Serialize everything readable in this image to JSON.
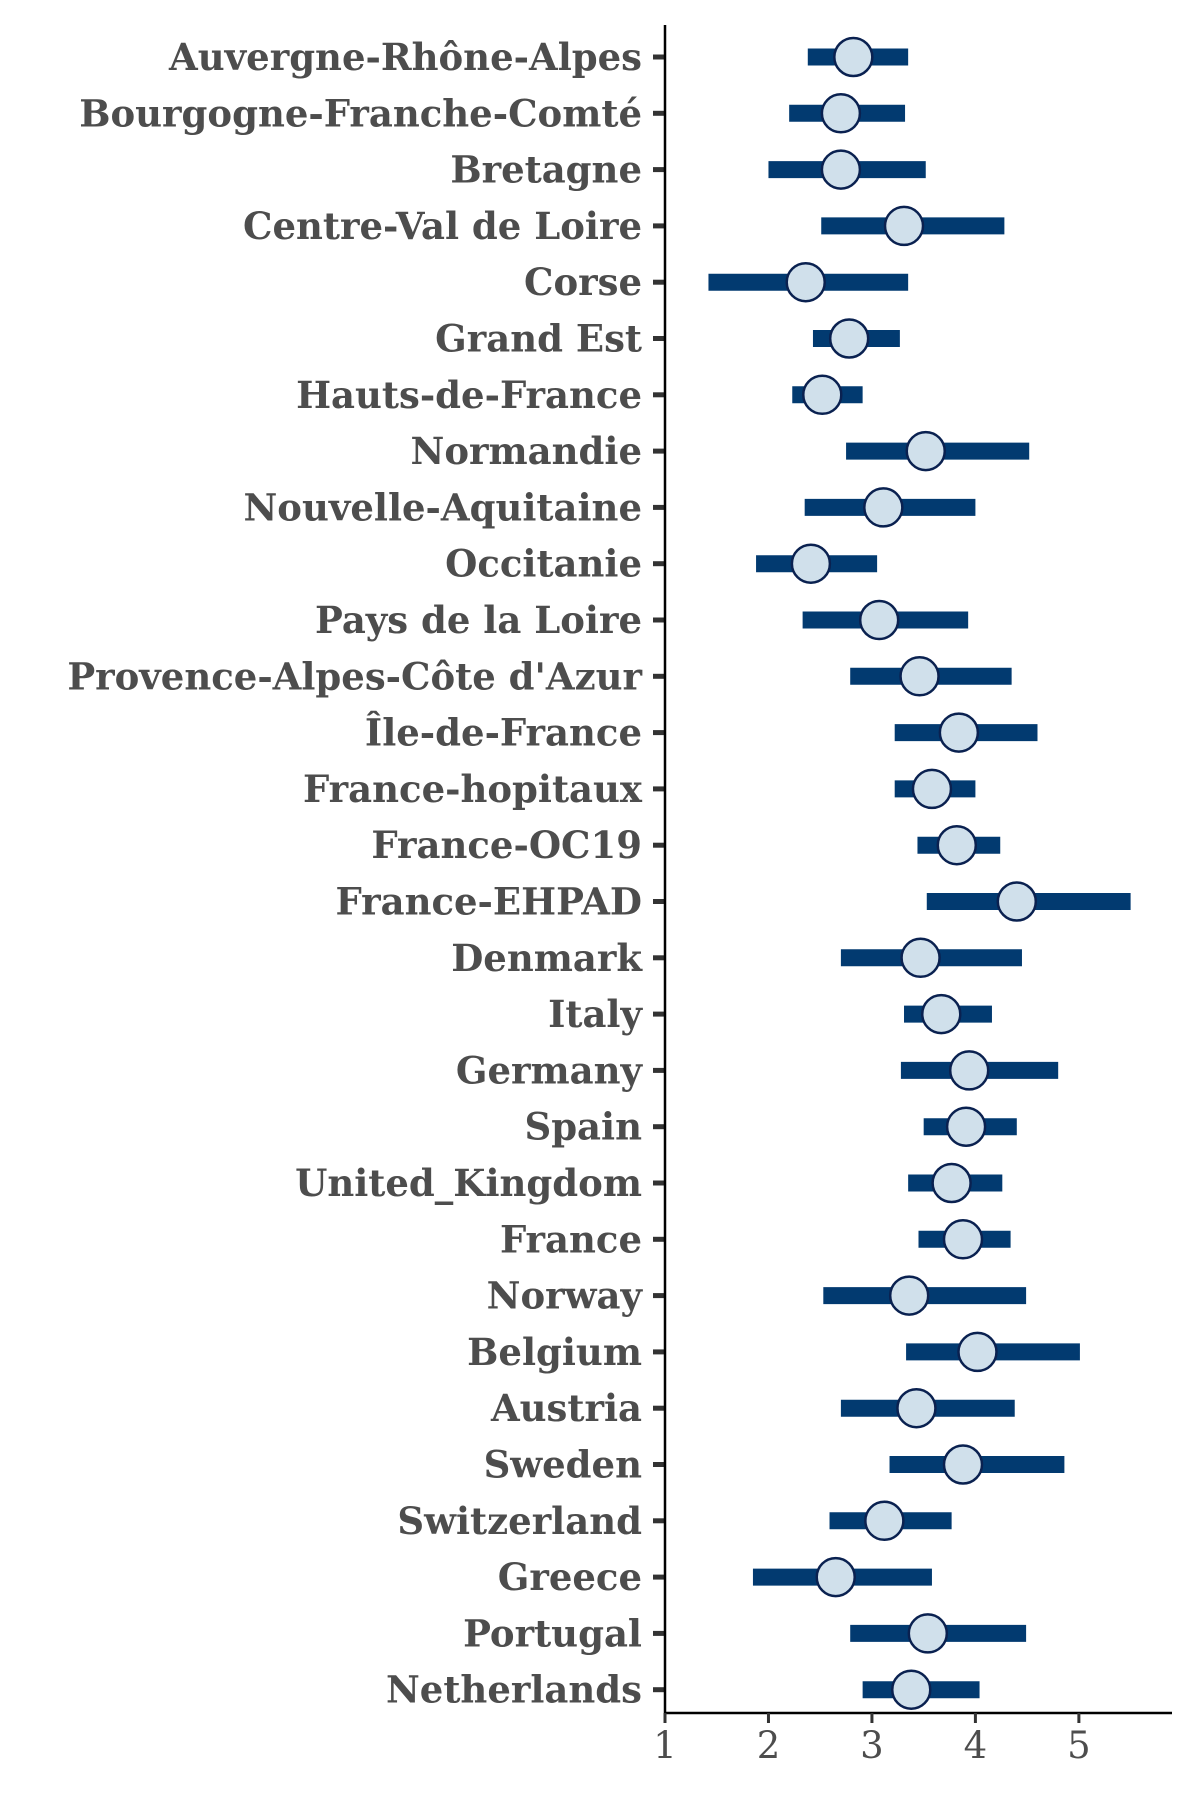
{
  "colors": {
    "interval": "#023a70",
    "point_fill": "#d0e0eb",
    "point_stroke": "#0a2150",
    "axis": "#000000",
    "tick_mark": "#333333",
    "text": "#4d4d4d"
  },
  "chart_data": {
    "type": "interval",
    "xlabel": "",
    "ylabel": "",
    "xlim": [
      1,
      5.9
    ],
    "xticks": [
      "1",
      "2",
      "3",
      "4",
      "5"
    ],
    "grid": false,
    "categories": [
      "Auvergne-Rhône-Alpes",
      "Bourgogne-Franche-Comté",
      "Bretagne",
      "Centre-Val de Loire",
      "Corse",
      "Grand Est",
      "Hauts-de-France",
      "Normandie",
      "Nouvelle-Aquitaine",
      "Occitanie",
      "Pays de la Loire",
      "Provence-Alpes-Côte d'Azur",
      "Île-de-France",
      "France-hopitaux",
      "France-OC19",
      "France-EHPAD",
      "Denmark",
      "Italy",
      "Germany",
      "Spain",
      "United_Kingdom",
      "France",
      "Norway",
      "Belgium",
      "Austria",
      "Sweden",
      "Switzerland",
      "Greece",
      "Portugal",
      "Netherlands"
    ],
    "estimates": [
      2.82,
      2.7,
      2.7,
      3.31,
      2.36,
      2.78,
      2.52,
      3.52,
      3.11,
      2.41,
      3.07,
      3.46,
      3.84,
      3.58,
      3.82,
      4.4,
      3.47,
      3.67,
      3.94,
      3.91,
      3.77,
      3.88,
      3.36,
      4.02,
      3.43,
      3.88,
      3.12,
      2.65,
      3.54,
      3.38
    ],
    "lower": [
      2.38,
      2.2,
      2.0,
      2.51,
      1.42,
      2.43,
      2.23,
      2.75,
      2.35,
      1.88,
      2.33,
      2.79,
      3.22,
      3.22,
      3.44,
      3.53,
      2.7,
      3.31,
      3.28,
      3.5,
      3.35,
      3.45,
      2.53,
      3.33,
      2.7,
      3.17,
      2.59,
      1.85,
      2.79,
      2.91
    ],
    "upper": [
      3.35,
      3.32,
      3.52,
      4.28,
      3.35,
      3.27,
      2.91,
      4.52,
      4.0,
      3.05,
      3.93,
      4.35,
      4.6,
      4.0,
      4.24,
      5.5,
      4.45,
      4.16,
      4.8,
      4.4,
      4.26,
      4.34,
      4.49,
      5.01,
      4.38,
      4.86,
      3.77,
      3.58,
      4.49,
      4.04
    ]
  }
}
